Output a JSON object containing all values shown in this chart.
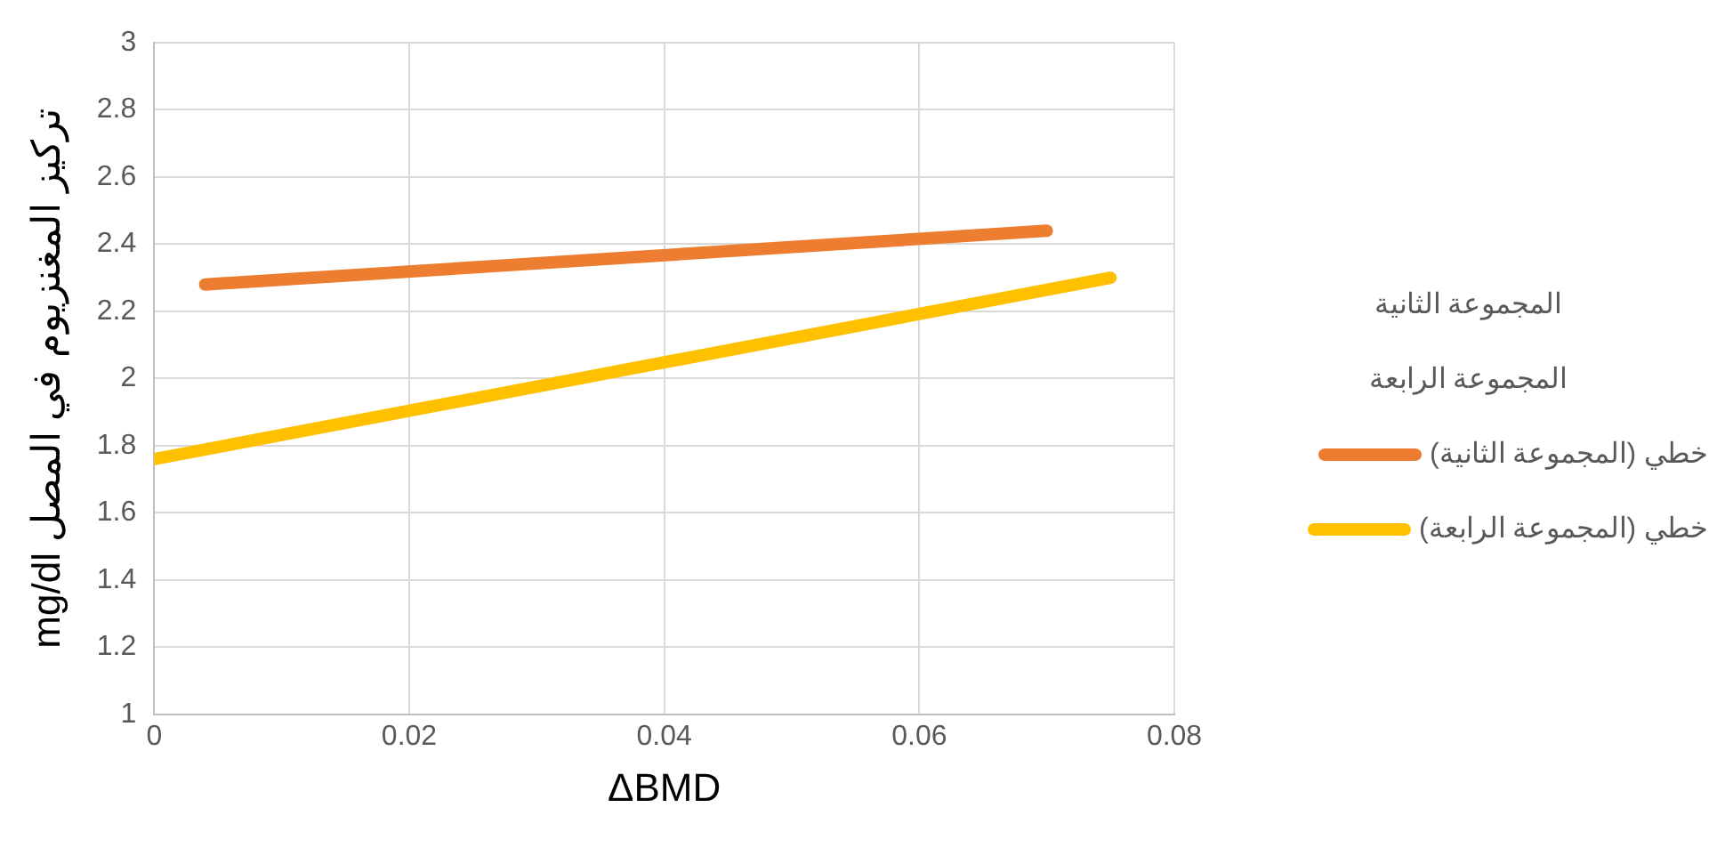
{
  "chart_data": {
    "type": "line",
    "xlabel": "ΔBMD",
    "ylabel": "mg/dl تركيز المغنزيوم في المصل",
    "xlim": [
      0,
      0.08
    ],
    "xticks": [
      0,
      0.02,
      0.04,
      0.06,
      0.08
    ],
    "ylim": [
      1,
      3
    ],
    "yticks": [
      1,
      1.2,
      1.4,
      1.6,
      1.8,
      2,
      2.2,
      2.4,
      2.6,
      2.8,
      3
    ],
    "grid": true,
    "legend": "right",
    "marker": "none",
    "line_style": "solid",
    "annotations": [
      "المجموعة الثانية",
      "المجموعة الرابعة"
    ],
    "series": [
      {
        "name": "خطي (المجموعة الثانية)",
        "color": "#ed7d31",
        "x": [
          0.004,
          0.07
        ],
        "values": [
          2.28,
          2.44
        ]
      },
      {
        "name": "خطي (المجموعة الرابعة)",
        "color": "#ffc000",
        "x": [
          0,
          0.075
        ],
        "values": [
          1.76,
          2.3
        ]
      }
    ]
  }
}
